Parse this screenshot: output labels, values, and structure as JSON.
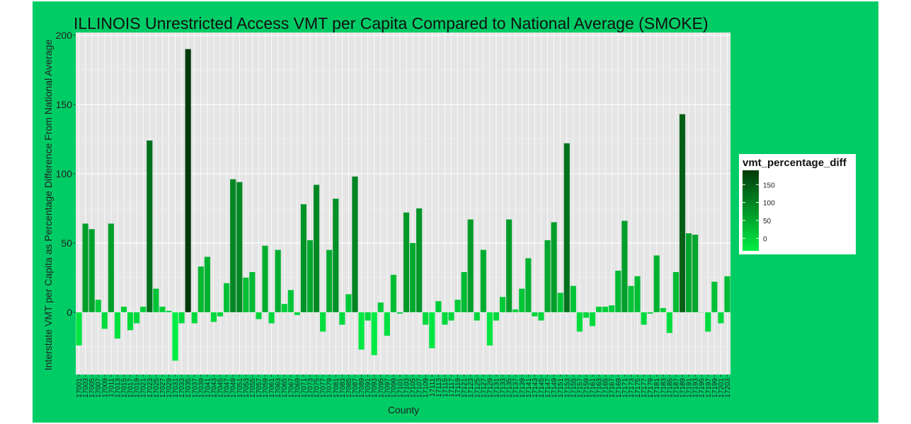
{
  "chart_data": {
    "type": "bar",
    "title": "ILLINOIS Unrestricted Access VMT per Capita Compared to National Average (SMOKE)",
    "xlabel": "County",
    "ylabel": "Interstate VMT per Capita as Percentage Difference From National Average",
    "ylim": [
      -45,
      202
    ],
    "y_ticks": [
      0,
      50,
      100,
      150,
      200
    ],
    "grid": true,
    "legend": {
      "title": "vmt_percentage_diff",
      "placement": "right",
      "ticks": [
        0,
        50,
        100,
        150
      ],
      "color_low": "#00ee44",
      "color_high": "#003b0a"
    },
    "categories": [
      "17001",
      "17003",
      "17005",
      "17007",
      "17009",
      "17011",
      "17013",
      "17015",
      "17017",
      "17019",
      "17021",
      "17023",
      "17025",
      "17027",
      "17029",
      "17031",
      "17033",
      "17035",
      "17037",
      "17039",
      "17041",
      "17043",
      "17045",
      "17047",
      "17049",
      "17051",
      "17053",
      "17055",
      "17057",
      "17059",
      "17061",
      "17063",
      "17065",
      "17067",
      "17069",
      "17071",
      "17073",
      "17075",
      "17077",
      "17079",
      "17081",
      "17083",
      "17085",
      "17087",
      "17089",
      "17091",
      "17093",
      "17095",
      "17097",
      "17099",
      "17101",
      "17103",
      "17105",
      "17107",
      "17109",
      "17111",
      "17113",
      "17115",
      "17117",
      "17119",
      "17121",
      "17123",
      "17125",
      "17127",
      "17129",
      "17131",
      "17133",
      "17135",
      "17137",
      "17139",
      "17141",
      "17143",
      "17145",
      "17147",
      "17149",
      "17151",
      "17153",
      "17155",
      "17157",
      "17159",
      "17161",
      "17163",
      "17165",
      "17167",
      "17169",
      "17171",
      "17173",
      "17175",
      "17177",
      "17179",
      "17181",
      "17183",
      "17185",
      "17187",
      "17189",
      "17191",
      "17193",
      "17195",
      "17197",
      "17199",
      "17201",
      "17203"
    ],
    "values": [
      -24,
      64,
      60,
      9,
      -12,
      64,
      -19,
      4,
      -13,
      -8,
      4,
      124,
      17,
      4,
      1,
      -35,
      -8,
      190,
      -8,
      33,
      40,
      -7,
      -3,
      21,
      96,
      94,
      25,
      29,
      -5,
      48,
      -8,
      45,
      6,
      16,
      -2,
      78,
      52,
      92,
      -14,
      45,
      82,
      -9,
      13,
      98,
      -27,
      -6,
      -31,
      7,
      -17,
      27,
      -1,
      72,
      50,
      75,
      -9,
      -26,
      8,
      -9,
      -6,
      9,
      29,
      67,
      -6,
      45,
      -24,
      -6,
      11,
      67,
      2,
      17,
      39,
      -3,
      -6,
      52,
      65,
      14,
      122,
      19,
      -14,
      -4,
      -10,
      4,
      4,
      5,
      30,
      66,
      19,
      26,
      -9,
      -1,
      41,
      3,
      -15,
      29,
      143,
      57,
      56,
      0,
      -14,
      22,
      -8,
      26
    ]
  }
}
